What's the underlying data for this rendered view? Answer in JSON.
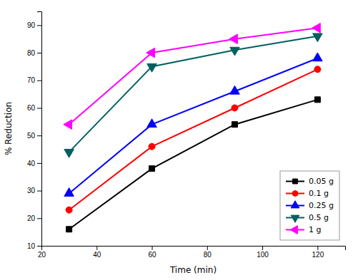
{
  "chart_data": {
    "type": "line",
    "xlabel": "Time (min)",
    "ylabel": "% Reduction",
    "x": [
      30,
      60,
      90,
      120
    ],
    "series": [
      {
        "name": "0.05 g",
        "color": "black",
        "marker": "square",
        "values": [
          16,
          38,
          54,
          63
        ]
      },
      {
        "name": "0.1 g",
        "color": "red",
        "marker": "circle",
        "values": [
          23,
          46,
          60,
          74
        ]
      },
      {
        "name": "0.25 g",
        "color": "blue",
        "marker": "triangle-up",
        "values": [
          29,
          54,
          66,
          78
        ]
      },
      {
        "name": "0.5 g",
        "color": "#006060",
        "marker": "triangle-down",
        "values": [
          44,
          75,
          81,
          86
        ]
      },
      {
        "name": "1 g",
        "color": "magenta",
        "marker": "triangle-left",
        "values": [
          54,
          80,
          85,
          89
        ]
      }
    ],
    "xlim": [
      20,
      130
    ],
    "ylim": [
      10,
      95
    ],
    "xticks": [
      20,
      40,
      60,
      80,
      100,
      120
    ],
    "yticks": [
      10,
      20,
      30,
      40,
      50,
      60,
      70,
      80,
      90
    ],
    "legend": "lower right",
    "grid": false
  }
}
